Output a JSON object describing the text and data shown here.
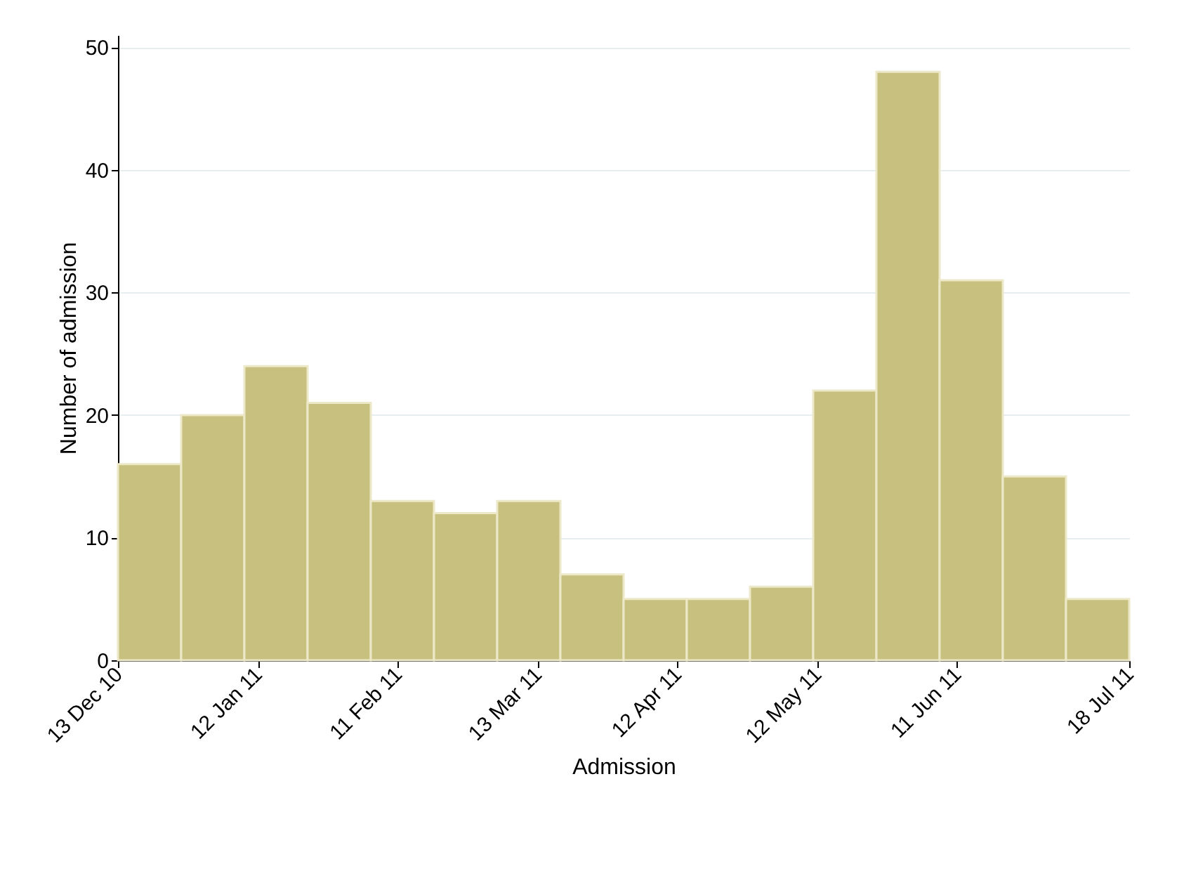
{
  "chart_data": {
    "type": "histogram",
    "xlabel": "Admission",
    "ylabel": "Number of admission",
    "bins": [
      "2010-12-13T00:00",
      "2010-12-26T13:30",
      "2011-01-09T03:00",
      "2011-01-22T16:30",
      "2011-02-05T06:00",
      "2011-02-18T19:30",
      "2011-03-04T09:00",
      "2011-03-17T22:30",
      "2011-03-31T12:00",
      "2011-04-14T01:30",
      "2011-04-27T15:00",
      "2011-05-11T04:30",
      "2011-05-24T18:00",
      "2011-06-07T07:30",
      "2011-06-20T21:00",
      "2011-07-04T10:30",
      "2011-07-18T00:00"
    ],
    "values": [
      16,
      20,
      24,
      21,
      13,
      12,
      13,
      7,
      5,
      5,
      6,
      22,
      48,
      31,
      15,
      5
    ],
    "color": "#c8c07e",
    "xlim": [
      "2010-12-13",
      "2011-07-18"
    ],
    "xticks": [
      {
        "value": "2010-12-13",
        "label": "13 Dec 10"
      },
      {
        "value": "2011-01-12",
        "label": "12 Jan 11"
      },
      {
        "value": "2011-02-11",
        "label": "11 Feb 11"
      },
      {
        "value": "2011-03-13",
        "label": "13 Mar 11"
      },
      {
        "value": "2011-04-12",
        "label": "12 Apr 11"
      },
      {
        "value": "2011-05-12",
        "label": "12 May 11"
      },
      {
        "value": "2011-06-11",
        "label": "11 Jun 11"
      },
      {
        "value": "2011-07-18",
        "label": "18 Jul 11"
      }
    ],
    "ylim": [
      0,
      51
    ],
    "yticks": [
      0,
      10,
      20,
      30,
      40,
      50
    ],
    "grid": "y"
  }
}
